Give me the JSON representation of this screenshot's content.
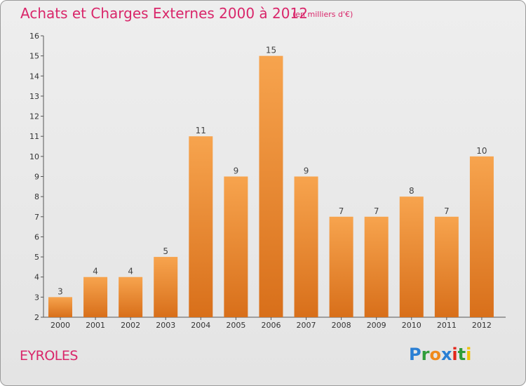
{
  "title": "Achats et Charges Externes 2000 à 2012",
  "subtitle": "(en milliers d'€)",
  "town": "EYROLES",
  "logo": {
    "p": "P",
    "r": "r",
    "o": "o",
    "x": "x",
    "i": "i",
    "t": "t",
    "i2": "i"
  },
  "colors": {
    "bar_top": "#f7a44e",
    "bar_bottom": "#d86f1a",
    "title": "#d9266a"
  },
  "chart_data": {
    "type": "bar",
    "title": "Achats et Charges Externes 2000 à 2012",
    "subtitle": "(en milliers d'€)",
    "xlabel": "",
    "ylabel": "",
    "categories": [
      "2000",
      "2001",
      "2002",
      "2003",
      "2004",
      "2005",
      "2006",
      "2007",
      "2008",
      "2009",
      "2010",
      "2011",
      "2012"
    ],
    "values": [
      3,
      4,
      4,
      5,
      11,
      9,
      15,
      9,
      7,
      7,
      8,
      7,
      10
    ],
    "ylim": [
      2,
      16
    ],
    "yticks": [
      2,
      3,
      4,
      5,
      6,
      7,
      8,
      9,
      10,
      11,
      12,
      13,
      14,
      15,
      16
    ],
    "grid": false,
    "legend": "none"
  }
}
